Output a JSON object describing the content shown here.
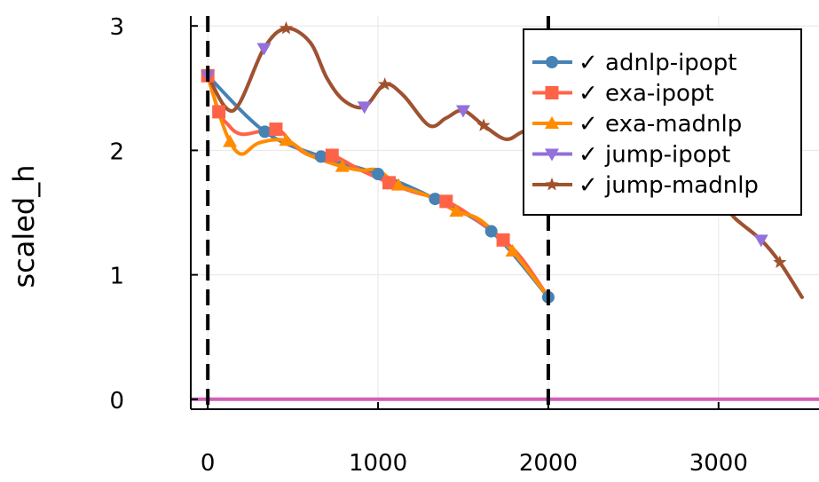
{
  "chart_data": {
    "type": "line",
    "ylabel": "scaled_h",
    "xlim": [
      -100,
      3590
    ],
    "ylim": [
      -0.08,
      3.08
    ],
    "x_ticks": [
      0,
      1000,
      2000,
      3000
    ],
    "y_ticks": [
      0,
      1,
      2,
      3
    ],
    "grid": true,
    "legend_position": "top-right",
    "vlines": [
      0,
      2000
    ],
    "hline": 0,
    "hline_color": "#D35FB7",
    "series": [
      {
        "name": "✓ adnlp-ipopt",
        "color": "#4682B4",
        "marker": "circle",
        "x": [
          0,
          335,
          665,
          1000,
          1335,
          1665,
          2000
        ],
        "y": [
          2.6,
          2.15,
          1.95,
          1.81,
          1.61,
          1.35,
          0.82
        ],
        "markers_x": [
          0,
          335,
          665,
          1000,
          1335,
          1665,
          2000
        ]
      },
      {
        "name": "✓ exa-ipopt",
        "color": "#FF6347",
        "marker": "square",
        "x": [
          0,
          65,
          110,
          200,
          400,
          500,
          600,
          730,
          900,
          1065,
          1200,
          1400,
          1550,
          1735,
          1850,
          2000
        ],
        "y": [
          2.6,
          2.31,
          2.22,
          2.13,
          2.17,
          2.05,
          1.96,
          1.96,
          1.84,
          1.74,
          1.67,
          1.59,
          1.47,
          1.28,
          1.12,
          0.82
        ],
        "markers_x": [
          0,
          65,
          400,
          730,
          1065,
          1400,
          1735
        ]
      },
      {
        "name": "✓ exa-madnlp",
        "color": "#FF8C00",
        "marker": "triangle-up",
        "x": [
          0,
          65,
          130,
          200,
          300,
          460,
          600,
          790,
          900,
          1000,
          1120,
          1300,
          1460,
          1600,
          1790,
          2000
        ],
        "y": [
          2.6,
          2.3,
          2.07,
          1.97,
          2.06,
          2.08,
          1.96,
          1.87,
          1.84,
          1.84,
          1.72,
          1.63,
          1.51,
          1.44,
          1.19,
          0.82
        ],
        "markers_x": [
          130,
          460,
          790,
          1120,
          1460,
          1790
        ]
      },
      {
        "name": "✓ jump-ipopt",
        "color": "#9370DB",
        "marker": "triangle-down",
        "x": [
          0,
          150,
          330,
          460,
          600,
          700,
          800,
          920,
          1040,
          1150,
          1300,
          1400,
          1500,
          1620,
          1750,
          1850,
          2000,
          2500,
          2800,
          3000,
          3100,
          3250,
          3360,
          3490
        ],
        "y": [
          2.6,
          2.32,
          2.82,
          2.98,
          2.87,
          2.58,
          2.4,
          2.35,
          2.53,
          2.44,
          2.2,
          2.26,
          2.32,
          2.2,
          2.09,
          2.15,
          2.22,
          1.95,
          1.75,
          1.6,
          1.45,
          1.28,
          1.1,
          0.82
        ],
        "markers_x": [
          0,
          330,
          920,
          1500,
          3250
        ]
      },
      {
        "name": "✓ jump-madnlp",
        "color": "#A0522D",
        "marker": "star",
        "x": [
          0,
          150,
          330,
          460,
          600,
          700,
          800,
          920,
          1040,
          1150,
          1300,
          1400,
          1500,
          1620,
          1750,
          1850,
          2000,
          2500,
          2800,
          3000,
          3100,
          3250,
          3360,
          3490
        ],
        "y": [
          2.6,
          2.32,
          2.82,
          2.98,
          2.87,
          2.58,
          2.4,
          2.35,
          2.53,
          2.44,
          2.2,
          2.26,
          2.32,
          2.2,
          2.09,
          2.15,
          2.22,
          1.95,
          1.75,
          1.6,
          1.45,
          1.28,
          1.1,
          0.82
        ],
        "markers_x": [
          460,
          1040,
          1620,
          3360
        ]
      }
    ]
  }
}
